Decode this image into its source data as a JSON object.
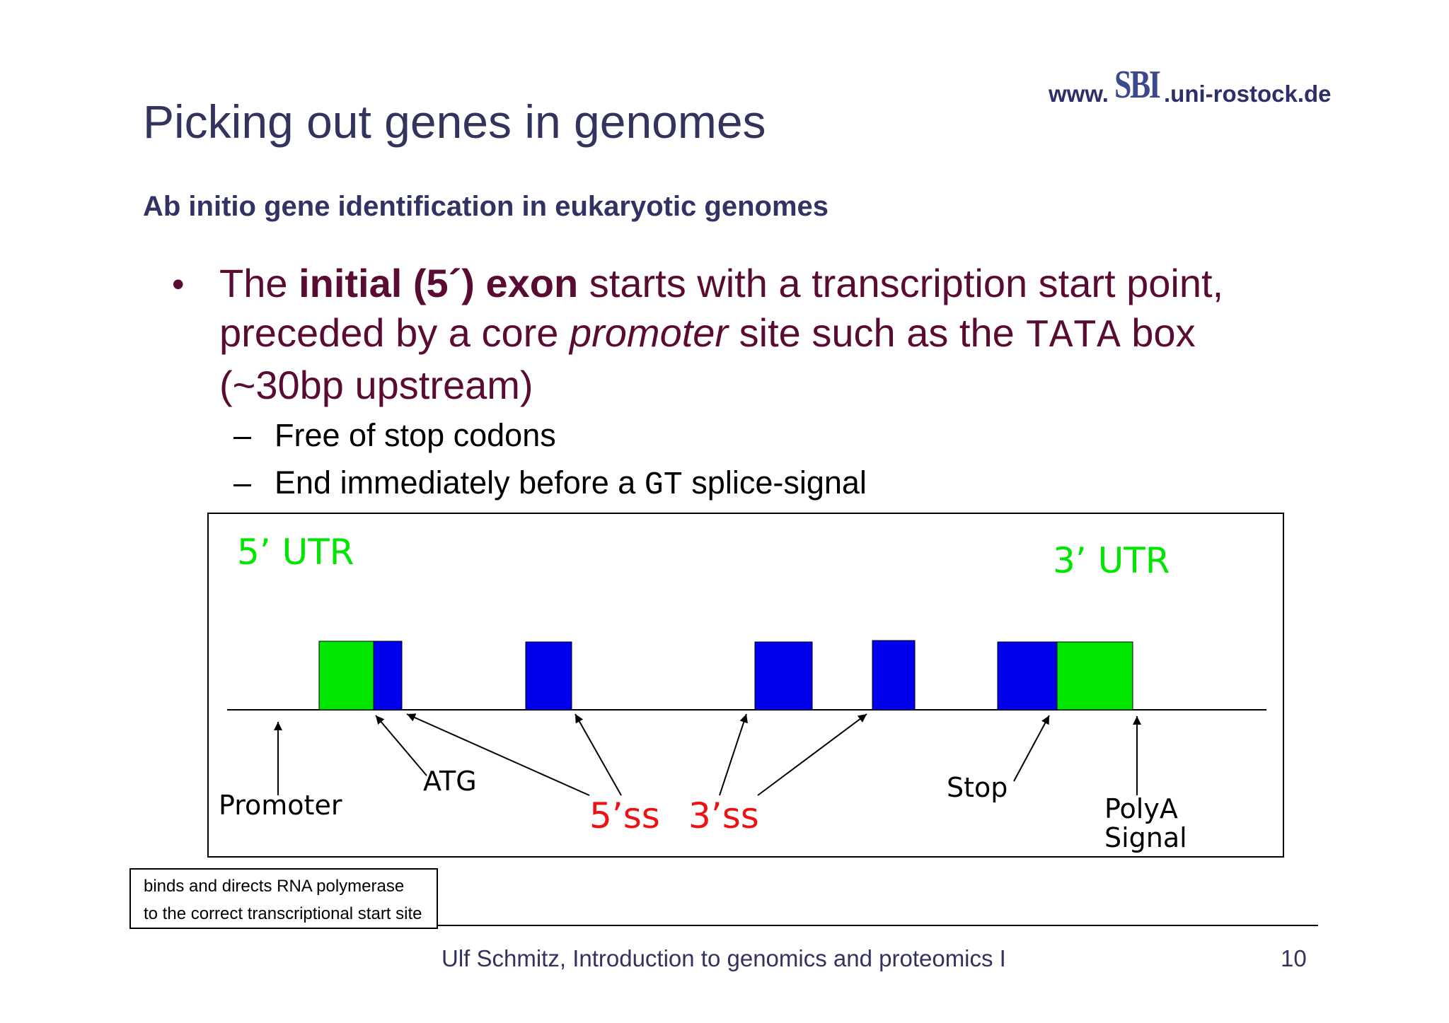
{
  "header": {
    "logo_prefix": "www.",
    "logo_mark": "SBI",
    "logo_suffix": ".uni-rostock.de",
    "title": "Picking out genes in genomes",
    "subtitle": "Ab initio gene identification in eukaryotic genomes"
  },
  "bullet": {
    "symbol": "•",
    "text_1": "The ",
    "bold": "initial (5´) exon",
    "text_2": " starts with a transcription start point, preceded by a core ",
    "italic": "promoter",
    "text_3": " site such as the ",
    "mono": "TATA",
    "text_4": " box (~30bp upstream)"
  },
  "subbullets": {
    "dash": "–",
    "item_1": "Free of stop codons",
    "item_2_pre": "End immediately before a ",
    "item_2_mono": "GT",
    "item_2_post": " splice-signal"
  },
  "diagram": {
    "utr5": "5’ UTR",
    "utr3": "3’ UTR",
    "promoter": "Promoter",
    "atg": "ATG",
    "ss5": "5’ss",
    "ss3": "3’ss",
    "stop": "Stop",
    "polya_1": "PolyA",
    "polya_2": "Signal",
    "colors": {
      "utr": "#00e600",
      "coding": "#0000ee",
      "splice_label": "#ee1111"
    }
  },
  "note": {
    "line_1": "binds and directs RNA polymerase",
    "line_2": "to the correct transcriptional start site"
  },
  "footer": {
    "text": "Ulf Schmitz, Introduction to genomics and proteomics I",
    "page": "10"
  }
}
